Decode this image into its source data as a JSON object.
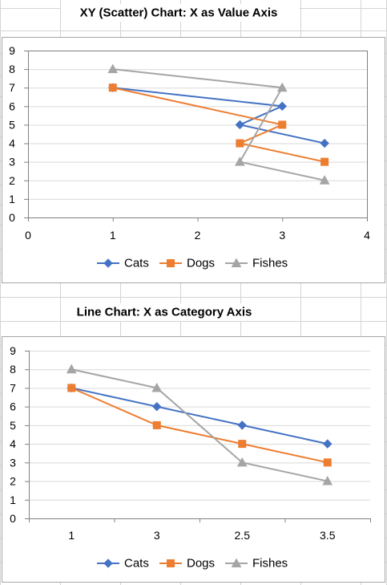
{
  "sheet": {
    "gridline_color": "#d4d4d4",
    "chart_border_color": "#a6a6a6",
    "plot_border_color": "#7f7f7f",
    "axis_color": "#808080",
    "text_color": "#000000"
  },
  "chart_data": [
    {
      "type": "scatter",
      "title": "XY (Scatter) Chart: X as Value Axis",
      "xlabel": "",
      "ylabel": "",
      "xlim": [
        0,
        4
      ],
      "ylim": [
        0,
        9
      ],
      "x_ticks": [
        0,
        1,
        2,
        3,
        4
      ],
      "y_ticks": [
        0,
        1,
        2,
        3,
        4,
        5,
        6,
        7,
        8,
        9
      ],
      "x_tick_labels": [
        "0",
        "1",
        "2",
        "3",
        "4"
      ],
      "y_tick_labels": [
        "0",
        "1",
        "2",
        "3",
        "4",
        "5",
        "6",
        "7",
        "8",
        "9"
      ],
      "grid": "horizontal",
      "legend_position": "bottom",
      "x": [
        1,
        3,
        2.5,
        3.5
      ],
      "series": [
        {
          "name": "Cats",
          "values": [
            7,
            6,
            5,
            4
          ],
          "color": "#4472c4",
          "marker": "diamond"
        },
        {
          "name": "Dogs",
          "values": [
            7,
            5,
            4,
            3
          ],
          "color": "#ed7d31",
          "marker": "square"
        },
        {
          "name": "Fishes",
          "values": [
            8,
            7,
            3,
            2
          ],
          "color": "#a5a5a5",
          "marker": "triangle"
        }
      ]
    },
    {
      "type": "line",
      "title": "Line Chart: X as Category Axis",
      "xlabel": "",
      "ylabel": "",
      "ylim": [
        0,
        9
      ],
      "y_ticks": [
        0,
        1,
        2,
        3,
        4,
        5,
        6,
        7,
        8,
        9
      ],
      "y_tick_labels": [
        "0",
        "1",
        "2",
        "3",
        "4",
        "5",
        "6",
        "7",
        "8",
        "9"
      ],
      "grid": "horizontal",
      "legend_position": "bottom",
      "categories": [
        "1",
        "3",
        "2.5",
        "3.5"
      ],
      "series": [
        {
          "name": "Cats",
          "values": [
            7,
            6,
            5,
            4
          ],
          "color": "#4472c4",
          "marker": "diamond"
        },
        {
          "name": "Dogs",
          "values": [
            7,
            5,
            4,
            3
          ],
          "color": "#ed7d31",
          "marker": "square"
        },
        {
          "name": "Fishes",
          "values": [
            8,
            7,
            3,
            2
          ],
          "color": "#a5a5a5",
          "marker": "triangle"
        }
      ]
    }
  ]
}
